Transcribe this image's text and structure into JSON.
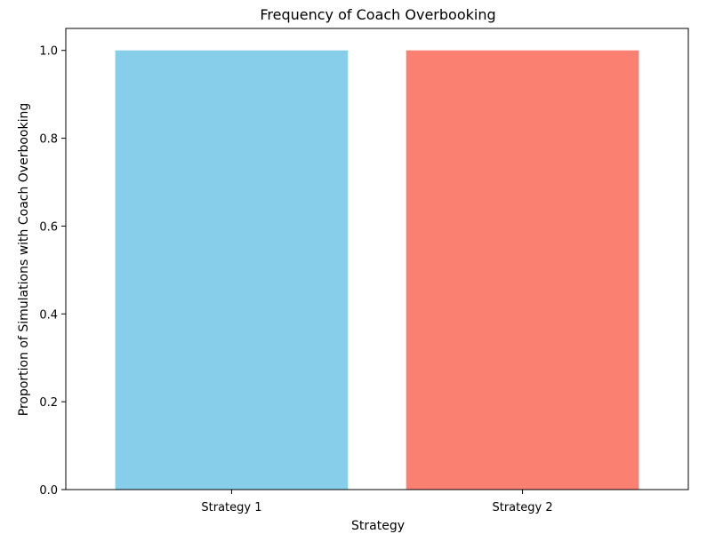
{
  "chart_data": {
    "type": "bar",
    "title": "Frequency of Coach Overbooking",
    "xlabel": "Strategy",
    "ylabel": "Proportion of Simulations with Coach Overbooking",
    "categories": [
      "Strategy 1",
      "Strategy 2"
    ],
    "values": [
      1.0,
      1.0
    ],
    "colors": [
      "#87CEEB",
      "#FA8072"
    ],
    "ylim": [
      0,
      1.05
    ],
    "yticks": [
      "0.0",
      "0.2",
      "0.4",
      "0.6",
      "0.8",
      "1.0"
    ],
    "grid": false,
    "legend": "none"
  }
}
